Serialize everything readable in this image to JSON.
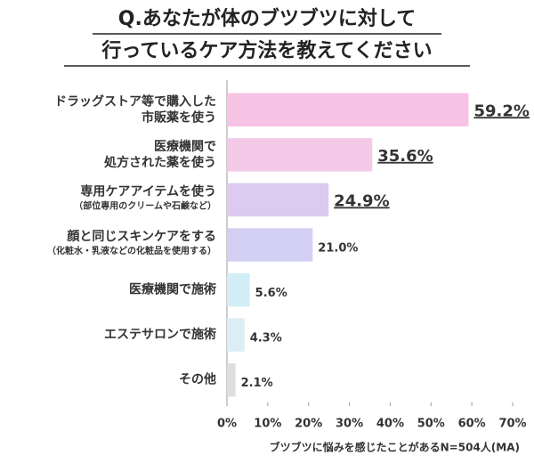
{
  "chart_data": {
    "type": "hbar",
    "title": [
      "Q.あなたが体のブツブツに対して",
      "行っているケア方法を教えてください"
    ],
    "categories": [
      [
        "ドラッグストア等で購入した",
        "市販薬を使う"
      ],
      [
        "医療機関で",
        "処方された薬を使う"
      ],
      [
        "専用ケアアイテムを使う"
      ],
      [
        "顔と同じスキンケアをする"
      ],
      [
        "医療機関で施術"
      ],
      [
        "エステサロンで施術"
      ],
      [
        "その他"
      ]
    ],
    "sublabels": [
      null,
      null,
      "（部位専用のクリームや石鹸など）",
      "（化粧水・乳液などの化粧品を使用する）",
      null,
      null,
      null
    ],
    "values": [
      59.2,
      35.6,
      24.9,
      21.0,
      5.6,
      4.3,
      2.1
    ],
    "value_labels": [
      "59.2%",
      "35.6%",
      "24.9%",
      "21.0%",
      "5.6%",
      "4.3%",
      "2.1%"
    ],
    "colors": [
      "#f7c3e5",
      "#f5c9e8",
      "#dccaf0",
      "#d2cff2",
      "#d2eef6",
      "#dcedf6",
      "#dedede"
    ],
    "label_colors": [
      "#e0327c",
      "#e0327c",
      "#e0327c",
      "#333333",
      "#333333",
      "#333333",
      "#333333"
    ],
    "xlim": [
      0,
      70
    ],
    "xticks": [
      {
        "value": 0,
        "label": "0%"
      },
      {
        "value": 10,
        "label": "10%"
      },
      {
        "value": 20,
        "label": "20%"
      },
      {
        "value": 30,
        "label": "30%"
      },
      {
        "value": 40,
        "label": "40%"
      },
      {
        "value": 50,
        "label": "50%"
      },
      {
        "value": 60,
        "label": "60%"
      },
      {
        "value": 70,
        "label": "70%"
      }
    ],
    "xlabel": "ブツブツに悩みを感じたことがあるN=504人(MA)",
    "grid": false
  }
}
